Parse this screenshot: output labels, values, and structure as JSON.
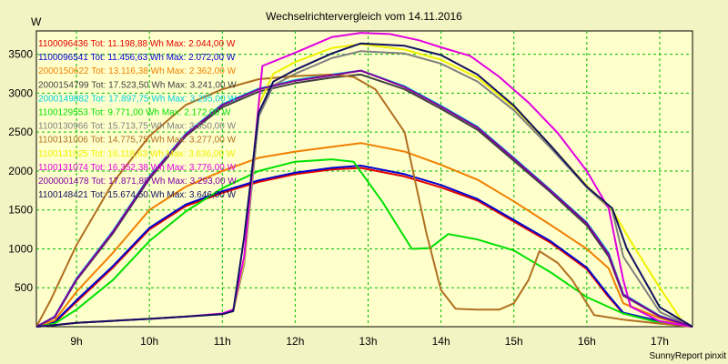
{
  "chart_data": {
    "type": "line",
    "title": "Wechselrichtervergleich vom 14.11.2016",
    "ylabel": "W",
    "xlabel": "",
    "footer": "SunnyReport pinxit",
    "grid": true,
    "legend_position": "top-left",
    "xlim": [
      8.45,
      17.45
    ],
    "ylim": [
      0,
      3800
    ],
    "x_ticks": [
      9,
      10,
      11,
      12,
      13,
      14,
      15,
      16,
      17
    ],
    "x_tick_labels": [
      "9h",
      "10h",
      "11h",
      "12h",
      "13h",
      "14h",
      "15h",
      "16h",
      "17h"
    ],
    "y_ticks": [
      500,
      1000,
      1500,
      2000,
      2500,
      3000,
      3500
    ],
    "y_tick_labels": [
      "500",
      "1000",
      "1500",
      "2000",
      "2500",
      "3000",
      "3500"
    ],
    "series": [
      {
        "name": "1100096436 Tot: 11.198,88 Wh Max: 2.044,00 W",
        "color": "#e00000",
        "points": [
          [
            8.45,
            0
          ],
          [
            8.7,
            50
          ],
          [
            9,
            320
          ],
          [
            9.5,
            760
          ],
          [
            10,
            1250
          ],
          [
            10.5,
            1550
          ],
          [
            11,
            1720
          ],
          [
            11.5,
            1860
          ],
          [
            12,
            1960
          ],
          [
            12.5,
            2020
          ],
          [
            12.9,
            2040
          ],
          [
            13.5,
            1930
          ],
          [
            14,
            1790
          ],
          [
            14.5,
            1620
          ],
          [
            15,
            1350
          ],
          [
            15.5,
            1080
          ],
          [
            16,
            740
          ],
          [
            16.3,
            380
          ],
          [
            16.5,
            170
          ],
          [
            17,
            60
          ],
          [
            17.45,
            0
          ]
        ]
      },
      {
        "name": "1100096541 Tot: 11.456,63 Wh Max: 2.072,00 W",
        "color": "#0000d0",
        "points": [
          [
            8.45,
            0
          ],
          [
            8.7,
            60
          ],
          [
            9,
            340
          ],
          [
            9.5,
            780
          ],
          [
            10,
            1270
          ],
          [
            10.5,
            1570
          ],
          [
            11,
            1740
          ],
          [
            11.5,
            1880
          ],
          [
            12,
            1980
          ],
          [
            12.5,
            2040
          ],
          [
            12.9,
            2070
          ],
          [
            13.5,
            1960
          ],
          [
            14,
            1820
          ],
          [
            14.5,
            1640
          ],
          [
            15,
            1370
          ],
          [
            15.5,
            1100
          ],
          [
            16,
            760
          ],
          [
            16.3,
            400
          ],
          [
            16.5,
            180
          ],
          [
            17,
            70
          ],
          [
            17.45,
            0
          ]
        ]
      },
      {
        "name": "2000150622 Tot: 13.116,38 Wh Max: 2.362,00 W",
        "color": "#f08000",
        "points": [
          [
            8.45,
            0
          ],
          [
            8.7,
            80
          ],
          [
            9,
            450
          ],
          [
            9.5,
            950
          ],
          [
            10,
            1500
          ],
          [
            10.5,
            1800
          ],
          [
            11,
            2000
          ],
          [
            11.5,
            2170
          ],
          [
            12,
            2250
          ],
          [
            12.5,
            2310
          ],
          [
            12.9,
            2360
          ],
          [
            13.5,
            2250
          ],
          [
            14,
            2080
          ],
          [
            14.5,
            1890
          ],
          [
            15,
            1610
          ],
          [
            15.5,
            1310
          ],
          [
            16,
            1000
          ],
          [
            16.3,
            750
          ],
          [
            16.5,
            300
          ],
          [
            17,
            110
          ],
          [
            17.45,
            0
          ]
        ]
      },
      {
        "name": "2000154799 Tot: 17.523,50 Wh Max: 3.241,00 W",
        "color": "#404040",
        "points": [
          [
            8.45,
            0
          ],
          [
            8.7,
            120
          ],
          [
            9,
            600
          ],
          [
            9.5,
            1200
          ],
          [
            10,
            1900
          ],
          [
            10.5,
            2450
          ],
          [
            11,
            2820
          ],
          [
            11.5,
            3020
          ],
          [
            12,
            3130
          ],
          [
            12.5,
            3200
          ],
          [
            12.9,
            3240
          ],
          [
            13.5,
            3050
          ],
          [
            14,
            2800
          ],
          [
            14.5,
            2530
          ],
          [
            15,
            2130
          ],
          [
            15.5,
            1730
          ],
          [
            16,
            1300
          ],
          [
            16.3,
            900
          ],
          [
            16.5,
            400
          ],
          [
            17,
            130
          ],
          [
            17.45,
            0
          ]
        ]
      },
      {
        "name": "2000149882 Tot: 17.897,75 Wh Max: 3.295,00 W",
        "color": "#00d0e0",
        "points": [
          [
            8.45,
            0
          ],
          [
            8.7,
            130
          ],
          [
            9,
            620
          ],
          [
            9.5,
            1230
          ],
          [
            10,
            1930
          ],
          [
            10.5,
            2480
          ],
          [
            11,
            2860
          ],
          [
            11.5,
            3060
          ],
          [
            12,
            3170
          ],
          [
            12.5,
            3240
          ],
          [
            12.9,
            3290
          ],
          [
            13.5,
            3090
          ],
          [
            14,
            2840
          ],
          [
            14.5,
            2570
          ],
          [
            15,
            2170
          ],
          [
            15.5,
            1760
          ],
          [
            16,
            1340
          ],
          [
            16.3,
            950
          ],
          [
            16.5,
            420
          ],
          [
            17,
            140
          ],
          [
            17.45,
            0
          ]
        ]
      },
      {
        "name": "1100129553 Tot: 9.771,00 Wh Max: 2.172,00 W",
        "color": "#00e000",
        "points": [
          [
            8.45,
            0
          ],
          [
            8.7,
            40
          ],
          [
            9,
            220
          ],
          [
            9.5,
            600
          ],
          [
            10,
            1100
          ],
          [
            10.5,
            1480
          ],
          [
            11,
            1780
          ],
          [
            11.5,
            2000
          ],
          [
            12,
            2120
          ],
          [
            12.5,
            2150
          ],
          [
            12.8,
            2120
          ],
          [
            13.2,
            1600
          ],
          [
            13.6,
            1000
          ],
          [
            13.85,
            1010
          ],
          [
            14.1,
            1190
          ],
          [
            14.5,
            1120
          ],
          [
            15,
            980
          ],
          [
            15.5,
            700
          ],
          [
            16,
            380
          ],
          [
            16.5,
            170
          ],
          [
            17,
            50
          ],
          [
            17.45,
            0
          ]
        ]
      },
      {
        "name": "1100130966 Tot: 15.713,75 Wh Max: 3.550,00 W",
        "color": "#808080",
        "points": [
          [
            8.45,
            0
          ],
          [
            8.7,
            20
          ],
          [
            9,
            50
          ],
          [
            10,
            100
          ],
          [
            10.5,
            130
          ],
          [
            11,
            160
          ],
          [
            11.15,
            200
          ],
          [
            11.3,
            800
          ],
          [
            11.5,
            2700
          ],
          [
            11.7,
            3100
          ],
          [
            12,
            3250
          ],
          [
            12.5,
            3450
          ],
          [
            12.9,
            3540
          ],
          [
            13.5,
            3510
          ],
          [
            14,
            3380
          ],
          [
            14.5,
            3150
          ],
          [
            15,
            2780
          ],
          [
            15.5,
            2300
          ],
          [
            16,
            1790
          ],
          [
            16.35,
            1490
          ],
          [
            16.5,
            900
          ],
          [
            17,
            190
          ],
          [
            17.45,
            0
          ]
        ]
      },
      {
        "name": "1100131006 Tot: 14.775,75 Wh Max: 3.277,00 W",
        "color": "#b07020",
        "points": [
          [
            8.45,
            0
          ],
          [
            8.65,
            350
          ],
          [
            9,
            1050
          ],
          [
            9.5,
            1850
          ],
          [
            10,
            2450
          ],
          [
            10.5,
            2850
          ],
          [
            11,
            3050
          ],
          [
            11.5,
            3180
          ],
          [
            12,
            3220
          ],
          [
            12.5,
            3240
          ],
          [
            12.8,
            3210
          ],
          [
            13.1,
            3050
          ],
          [
            13.5,
            2500
          ],
          [
            13.8,
            1200
          ],
          [
            14,
            470
          ],
          [
            14.2,
            230
          ],
          [
            14.5,
            220
          ],
          [
            14.8,
            220
          ],
          [
            15,
            300
          ],
          [
            15.2,
            600
          ],
          [
            15.35,
            970
          ],
          [
            15.6,
            820
          ],
          [
            15.8,
            600
          ],
          [
            16.1,
            150
          ],
          [
            16.5,
            90
          ],
          [
            17,
            40
          ],
          [
            17.45,
            0
          ]
        ]
      },
      {
        "name": "1100131025 Tot: 16.118,63 Wh Max: 3.636,00 W",
        "color": "#f0f000",
        "points": [
          [
            8.45,
            0
          ],
          [
            8.7,
            20
          ],
          [
            9,
            50
          ],
          [
            10,
            100
          ],
          [
            10.5,
            130
          ],
          [
            11,
            160
          ],
          [
            11.15,
            210
          ],
          [
            11.3,
            850
          ],
          [
            11.5,
            2850
          ],
          [
            11.7,
            3250
          ],
          [
            12,
            3400
          ],
          [
            12.5,
            3580
          ],
          [
            12.9,
            3630
          ],
          [
            13.5,
            3560
          ],
          [
            14,
            3430
          ],
          [
            14.5,
            3200
          ],
          [
            15,
            2820
          ],
          [
            15.5,
            2330
          ],
          [
            16,
            1810
          ],
          [
            16.35,
            1500
          ],
          [
            16.6,
            1100
          ],
          [
            17,
            500
          ],
          [
            17.3,
            80
          ],
          [
            17.45,
            0
          ]
        ]
      },
      {
        "name": "1100131074 Tot: 16.352,38 Wh Max: 3.776,00 W",
        "color": "#e000e0",
        "points": [
          [
            8.45,
            0
          ],
          [
            8.7,
            20
          ],
          [
            9,
            50
          ],
          [
            10,
            100
          ],
          [
            10.5,
            130
          ],
          [
            11,
            170
          ],
          [
            11.15,
            220
          ],
          [
            11.3,
            900
          ],
          [
            11.55,
            3350
          ],
          [
            12,
            3520
          ],
          [
            12.5,
            3720
          ],
          [
            12.9,
            3776
          ],
          [
            13.3,
            3760
          ],
          [
            13.7,
            3680
          ],
          [
            14,
            3590
          ],
          [
            14.4,
            3480
          ],
          [
            14.8,
            3210
          ],
          [
            15.2,
            2880
          ],
          [
            15.6,
            2490
          ],
          [
            16,
            2000
          ],
          [
            16.3,
            1520
          ],
          [
            16.5,
            600
          ],
          [
            16.6,
            260
          ],
          [
            17,
            70
          ],
          [
            17.45,
            0
          ]
        ]
      },
      {
        "name": "2000001478 Tot: 17.871,88 Wh Max: 3.293,00 W",
        "color": "#8000a0",
        "points": [
          [
            8.45,
            0
          ],
          [
            8.7,
            125
          ],
          [
            9,
            610
          ],
          [
            9.5,
            1220
          ],
          [
            10,
            1920
          ],
          [
            10.5,
            2470
          ],
          [
            11,
            2850
          ],
          [
            11.5,
            3050
          ],
          [
            12,
            3160
          ],
          [
            12.5,
            3230
          ],
          [
            12.9,
            3290
          ],
          [
            13.5,
            3080
          ],
          [
            14,
            2830
          ],
          [
            14.5,
            2560
          ],
          [
            15,
            2160
          ],
          [
            15.5,
            1750
          ],
          [
            16,
            1330
          ],
          [
            16.3,
            930
          ],
          [
            16.5,
            410
          ],
          [
            17,
            135
          ],
          [
            17.45,
            0
          ]
        ]
      },
      {
        "name": "1100148421 Tot: 15.674,50 Wh Max: 3.646,00 W",
        "color": "#101060",
        "points": [
          [
            8.45,
            0
          ],
          [
            8.7,
            20
          ],
          [
            9,
            50
          ],
          [
            10,
            100
          ],
          [
            10.5,
            130
          ],
          [
            11,
            160
          ],
          [
            11.15,
            200
          ],
          [
            11.3,
            1150
          ],
          [
            11.5,
            2750
          ],
          [
            11.7,
            3150
          ],
          [
            12,
            3300
          ],
          [
            12.5,
            3510
          ],
          [
            12.9,
            3640
          ],
          [
            13.5,
            3610
          ],
          [
            14,
            3490
          ],
          [
            14.5,
            3240
          ],
          [
            15,
            2840
          ],
          [
            15.5,
            2330
          ],
          [
            16,
            1800
          ],
          [
            16.35,
            1520
          ],
          [
            16.55,
            1000
          ],
          [
            17,
            250
          ],
          [
            17.45,
            0
          ]
        ]
      }
    ]
  }
}
